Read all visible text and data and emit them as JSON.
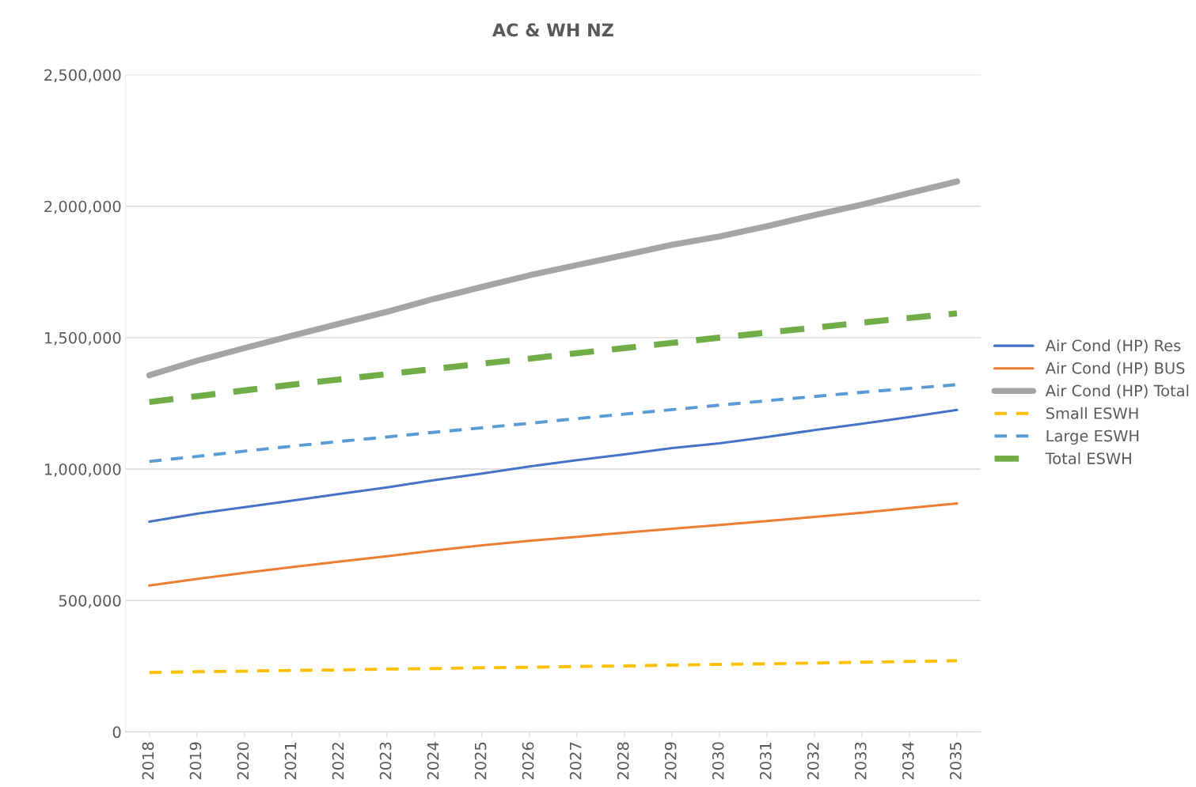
{
  "chart_data": {
    "type": "line",
    "title": "AC & WH NZ",
    "categories": [
      "2018",
      "2019",
      "2020",
      "2021",
      "2022",
      "2023",
      "2024",
      "2025",
      "2026",
      "2027",
      "2028",
      "2029",
      "2030",
      "2031",
      "2032",
      "2033",
      "2034",
      "2035"
    ],
    "series": [
      {
        "name": "Air Cond (HP) Res",
        "color": "#4472c4",
        "line_style": "solid",
        "values": [
          800000,
          830000,
          855000,
          880000,
          905000,
          930000,
          958000,
          983000,
          1010000,
          1034000,
          1056000,
          1080000,
          1098000,
          1122000,
          1148000,
          1172000,
          1198000,
          1225000
        ]
      },
      {
        "name": "Air Cond (HP) BUS",
        "color": "#ed7d31",
        "line_style": "solid",
        "values": [
          557000,
          582000,
          605000,
          627000,
          648000,
          668000,
          690000,
          710000,
          727000,
          742000,
          758000,
          773000,
          787000,
          802000,
          818000,
          834000,
          852000,
          869000
        ]
      },
      {
        "name": "Air Cond (HP) Total",
        "color": "#a5a5a5",
        "line_style": "solid",
        "values": [
          1357000,
          1412000,
          1460000,
          1507000,
          1553000,
          1598000,
          1648000,
          1693000,
          1737000,
          1776000,
          1814000,
          1853000,
          1885000,
          1924000,
          1966000,
          2006000,
          2050000,
          2094000
        ]
      },
      {
        "name": "Small ESWH",
        "color": "#ffc000",
        "line_style": "dashed",
        "values": [
          226000,
          229000,
          231000,
          234000,
          236000,
          239000,
          241000,
          244000,
          246000,
          249000,
          251000,
          254000,
          257000,
          259000,
          262000,
          265000,
          268000,
          271000
        ]
      },
      {
        "name": "Large ESWH",
        "color": "#5b9bd5",
        "line_style": "dashed",
        "values": [
          1029000,
          1048000,
          1068000,
          1087000,
          1105000,
          1122000,
          1140000,
          1157000,
          1174000,
          1192000,
          1209000,
          1226000,
          1243000,
          1260000,
          1276000,
          1292000,
          1307000,
          1321000
        ]
      },
      {
        "name": "Total ESWH",
        "color": "#70ad47",
        "line_style": "dashed",
        "values": [
          1255000,
          1277000,
          1299000,
          1321000,
          1341000,
          1361000,
          1381000,
          1401000,
          1420000,
          1441000,
          1460000,
          1480000,
          1500000,
          1519000,
          1538000,
          1557000,
          1575000,
          1592000
        ]
      }
    ],
    "ylim": [
      0,
      2500000
    ],
    "yticks": [
      {
        "value": 0,
        "label": "0"
      },
      {
        "value": 500000,
        "label": "500,000"
      },
      {
        "value": 1000000,
        "label": "1,000,000"
      },
      {
        "value": 1500000,
        "label": "1,500,000"
      },
      {
        "value": 2000000,
        "label": "2,000,000"
      },
      {
        "value": 2500000,
        "label": "2,500,000"
      }
    ],
    "grid": "y",
    "legend": "right",
    "marker": "none"
  }
}
